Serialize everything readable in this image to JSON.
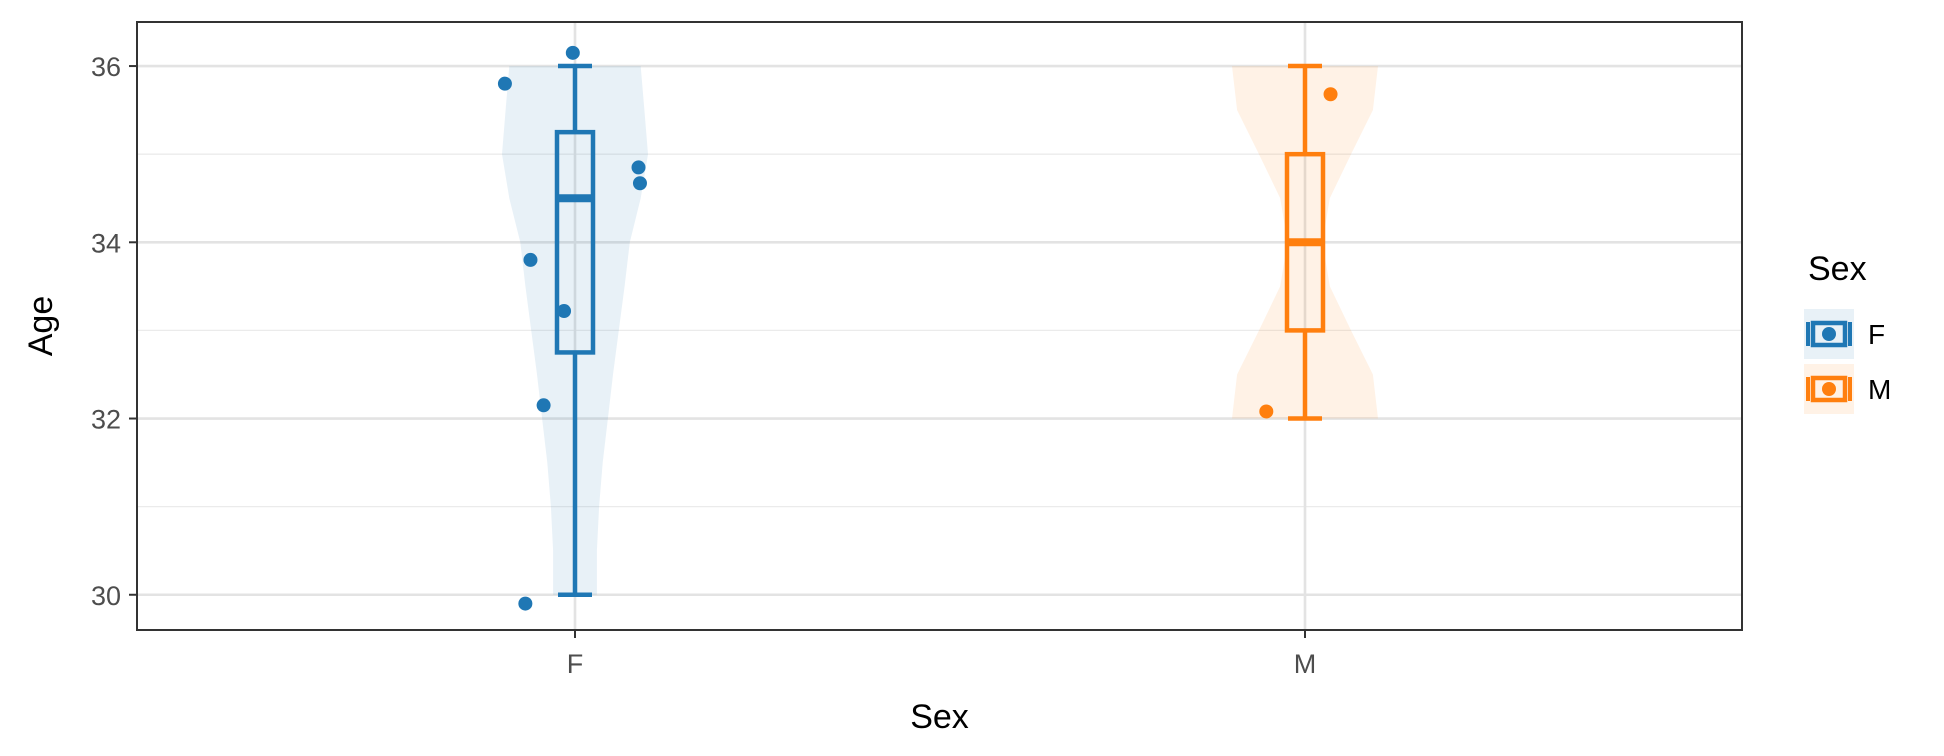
{
  "chart_data": {
    "type": "violin-box-jitter",
    "title": "",
    "xlabel": "Sex",
    "ylabel": "Age",
    "ylim": [
      29.6,
      36.5
    ],
    "yticks": [
      30,
      32,
      34,
      36
    ],
    "yticks_minor": [
      31,
      33,
      35
    ],
    "categories": [
      "F",
      "M"
    ],
    "grid": true,
    "legend": {
      "title": "Sex",
      "position": "right",
      "entries": [
        "F",
        "M"
      ]
    },
    "colors": {
      "F": "#1f77b4",
      "M": "#ff7f0e"
    },
    "groups": [
      {
        "category": "F",
        "box": {
          "min": 30,
          "q1": 32.75,
          "median": 34.5,
          "q3": 35.25,
          "max": 36
        },
        "points": [
          {
            "x_jitter": -0.096,
            "y": 35.8
          },
          {
            "x_jitter": -0.061,
            "y": 33.8
          },
          {
            "x_jitter": -0.015,
            "y": 33.22
          },
          {
            "x_jitter": -0.043,
            "y": 32.15
          },
          {
            "x_jitter": -0.068,
            "y": 29.9
          },
          {
            "x_jitter": -0.003,
            "y": 36.15
          },
          {
            "x_jitter": 0.087,
            "y": 34.85
          },
          {
            "x_jitter": 0.089,
            "y": 34.67
          }
        ],
        "violin": [
          {
            "y": 30.0,
            "w": 0.03
          },
          {
            "y": 30.5,
            "w": 0.03
          },
          {
            "y": 31.0,
            "w": 0.033
          },
          {
            "y": 31.5,
            "w": 0.038
          },
          {
            "y": 32.0,
            "w": 0.045
          },
          {
            "y": 32.5,
            "w": 0.052
          },
          {
            "y": 33.0,
            "w": 0.06
          },
          {
            "y": 33.5,
            "w": 0.068
          },
          {
            "y": 34.0,
            "w": 0.075
          },
          {
            "y": 34.5,
            "w": 0.09
          },
          {
            "y": 35.0,
            "w": 0.1
          },
          {
            "y": 35.5,
            "w": 0.095
          },
          {
            "y": 36.0,
            "w": 0.09
          }
        ]
      },
      {
        "category": "M",
        "box": {
          "min": 32,
          "q1": 33,
          "median": 34,
          "q3": 35,
          "max": 36
        },
        "points": [
          {
            "x_jitter": 0.035,
            "y": 35.68
          },
          {
            "x_jitter": -0.053,
            "y": 32.08
          }
        ],
        "violin": [
          {
            "y": 32.0,
            "w": 0.1
          },
          {
            "y": 32.5,
            "w": 0.093
          },
          {
            "y": 33.0,
            "w": 0.063
          },
          {
            "y": 33.5,
            "w": 0.034
          },
          {
            "y": 34.0,
            "w": 0.024
          },
          {
            "y": 34.5,
            "w": 0.034
          },
          {
            "y": 35.0,
            "w": 0.063
          },
          {
            "y": 35.5,
            "w": 0.093
          },
          {
            "y": 36.0,
            "w": 0.1
          }
        ]
      }
    ]
  }
}
